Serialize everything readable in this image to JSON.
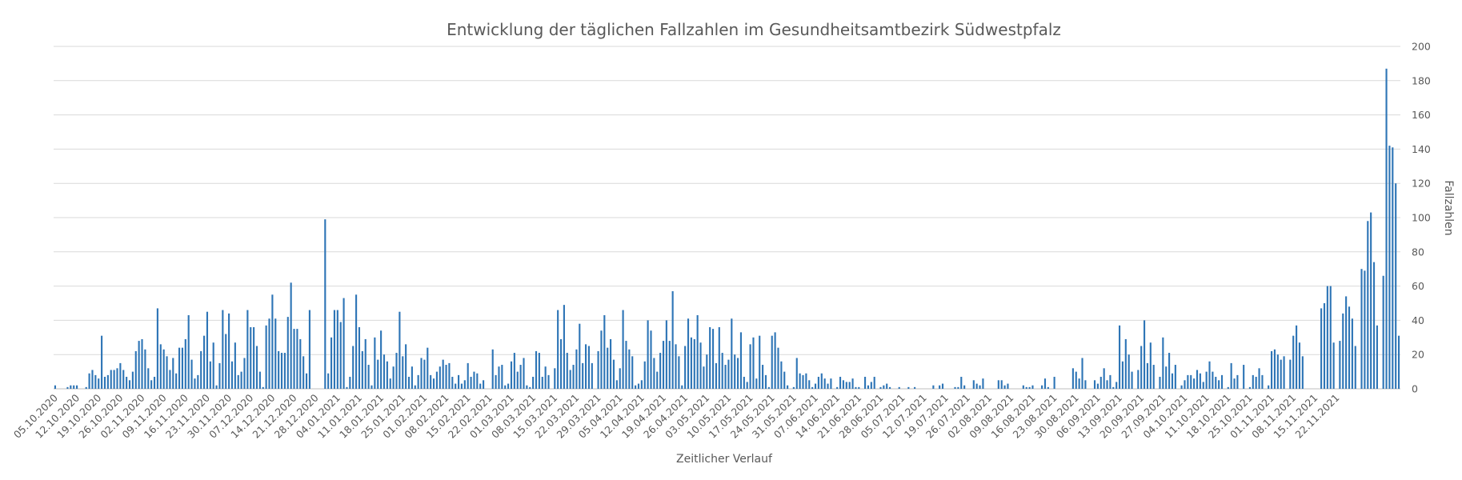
{
  "chart_data": {
    "type": "bar",
    "title": "Entwicklung der täglichen Fallzahlen im Gesundheitsamtbezirk Südwestpfalz",
    "xlabel": "Zeitlicher Verlauf",
    "ylabel": "Fallzahlen",
    "ylim": [
      0,
      200
    ],
    "yticks": [
      0,
      20,
      40,
      60,
      80,
      100,
      120,
      140,
      160,
      180,
      200
    ],
    "grid": true,
    "legend": "none",
    "y_axis_side": "right",
    "bar_color": "#2e75b6",
    "x_tick_labels": [
      "05.10.2020",
      "12.10.2020",
      "19.10.2020",
      "26.10.2020",
      "02.11.2020",
      "09.11.2020",
      "16.11.2020",
      "23.11.2020",
      "30.11.2020",
      "07.12.2020",
      "14.12.2020",
      "21.12.2020",
      "28.12.2020",
      "04.01.2021",
      "11.01.2021",
      "18.01.2021",
      "25.01.2021",
      "01.02.2021",
      "08.02.2021",
      "15.02.2021",
      "22.02.2021",
      "01.03.2021",
      "08.03.2021",
      "15.03.2021",
      "22.03.2021",
      "29.03.2021",
      "05.04.2021",
      "12.04.2021",
      "19.04.2021",
      "26.04.2021",
      "03.05.2021",
      "10.05.2021",
      "17.05.2021",
      "24.05.2021",
      "31.05.2021",
      "07.06.2021",
      "14.06.2021",
      "21.06.2021",
      "28.06.2021",
      "05.07.2021",
      "12.07.2021",
      "19.07.2021",
      "26.07.2021",
      "02.08.2021",
      "09.08.2021",
      "16.08.2021",
      "23.08.2021",
      "30.08.2021",
      "06.09.2021",
      "13.09.2021",
      "20.09.2021",
      "27.09.2021",
      "04.10.2021",
      "11.10.2021",
      "18.10.2021",
      "25.10.2021",
      "01.11.2021",
      "08.11.2021",
      "15.11.2021",
      "22.11.2021"
    ],
    "series": [
      {
        "values": [
          2,
          0,
          0,
          0,
          1,
          2,
          2,
          2,
          0,
          0,
          1,
          9,
          11,
          8,
          6,
          31,
          7,
          8,
          11,
          11,
          12,
          15,
          11,
          7,
          5,
          10,
          22,
          28,
          29,
          23,
          12,
          5,
          7,
          47,
          26,
          23,
          19,
          11,
          18,
          9,
          24,
          24,
          29,
          43,
          17,
          6,
          8,
          22,
          31,
          45,
          16,
          27,
          2,
          15,
          46,
          32,
          44,
          16,
          27,
          8,
          10,
          18,
          46,
          36,
          36,
          25,
          10,
          1,
          37,
          41,
          55,
          41,
          22,
          21,
          21,
          42,
          62,
          35,
          35,
          29,
          19,
          9,
          46,
          0,
          0,
          0,
          0,
          99,
          9,
          30,
          46,
          46,
          39,
          53,
          1,
          7,
          25,
          55,
          36,
          22,
          29,
          14,
          2,
          30,
          17,
          34,
          20,
          16,
          6,
          13,
          21,
          45,
          19,
          26,
          7,
          13,
          2,
          8,
          18,
          17,
          24,
          8,
          6,
          10,
          13,
          17,
          14,
          15,
          7,
          3,
          8,
          3,
          5,
          15,
          7,
          10,
          9,
          3,
          5,
          0,
          0,
          23,
          8,
          13,
          14,
          2,
          3,
          16,
          21,
          10,
          14,
          18,
          2,
          1,
          7,
          22,
          21,
          7,
          13,
          8,
          0,
          12,
          46,
          29,
          49,
          21,
          11,
          14,
          23,
          38,
          15,
          26,
          25,
          15,
          0,
          22,
          34,
          43,
          24,
          29,
          17,
          5,
          12,
          46,
          28,
          23,
          19,
          2,
          3,
          5,
          16,
          40,
          34,
          18,
          10,
          21,
          28,
          40,
          28,
          57,
          26,
          19,
          2,
          25,
          41,
          30,
          29,
          43,
          27,
          13,
          20,
          36,
          35,
          15,
          36,
          21,
          14,
          17,
          41,
          20,
          18,
          33,
          7,
          4,
          26,
          30,
          6,
          31,
          14,
          8,
          1,
          31,
          33,
          24,
          16,
          10,
          2,
          0,
          1,
          18,
          9,
          8,
          9,
          5,
          1,
          3,
          7,
          9,
          6,
          3,
          6,
          0,
          1,
          7,
          5,
          4,
          4,
          6,
          1,
          1,
          0,
          7,
          2,
          4,
          7,
          0,
          1,
          2,
          3,
          1,
          0,
          0,
          1,
          0,
          0,
          1,
          0,
          1,
          0,
          0,
          0,
          0,
          0,
          2,
          0,
          2,
          3,
          0,
          0,
          0,
          1,
          1,
          7,
          2,
          0,
          0,
          5,
          3,
          2,
          6,
          0,
          0,
          0,
          0,
          5,
          5,
          2,
          3,
          0,
          0,
          0,
          0,
          2,
          1,
          1,
          2,
          0,
          0,
          2,
          6,
          1,
          0,
          7,
          0,
          0,
          0,
          0,
          0,
          12,
          10,
          6,
          18,
          5,
          0,
          0,
          5,
          3,
          7,
          12,
          5,
          8,
          1,
          4,
          37,
          16,
          29,
          20,
          10,
          0,
          11,
          25,
          40,
          15,
          27,
          14,
          0,
          7,
          30,
          13,
          21,
          9,
          14,
          0,
          2,
          5,
          8,
          8,
          6,
          11,
          9,
          4,
          10,
          16,
          10,
          7,
          5,
          8,
          0,
          1,
          15,
          6,
          8,
          0,
          14,
          0,
          1,
          8,
          7,
          12,
          8,
          0,
          2,
          22,
          23,
          20,
          17,
          19,
          0,
          17,
          31,
          37,
          27,
          19,
          0,
          0,
          0,
          0,
          0,
          47,
          50,
          60,
          60,
          27,
          0,
          28,
          44,
          54,
          48,
          41,
          25,
          0,
          70,
          69,
          98,
          103,
          74,
          37,
          0,
          66,
          187,
          142,
          141,
          120,
          31
        ]
      }
    ]
  }
}
